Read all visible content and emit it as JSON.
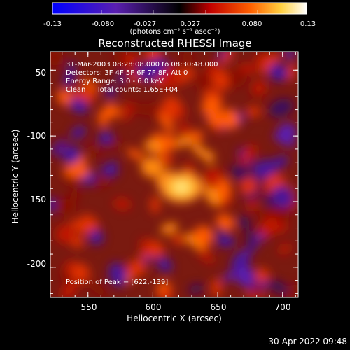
{
  "colorbar": {
    "ticks": [
      "-0.13",
      "-0.080",
      "-0.027",
      "0.027",
      "0.080",
      "0.13"
    ],
    "units_label": "(photons cm⁻² s⁻¹ asec⁻²)",
    "min": -0.13,
    "max": 0.13,
    "colors": [
      "#0000ff",
      "#5a1fb0",
      "#000000",
      "#c00000",
      "#ff6000",
      "#ffd040",
      "#ffffff"
    ]
  },
  "chart_data": {
    "type": "heatmap",
    "title": "Reconstructed RHESSI Image",
    "xlabel": "Heliocentric X (arcsec)",
    "ylabel": "Heliocentric Y (arcsec)",
    "xlim": [
      521,
      712
    ],
    "ylim": [
      -223,
      -36
    ],
    "x_ticks": [
      550,
      600,
      650,
      700
    ],
    "y_ticks": [
      -50,
      -100,
      -150,
      -200
    ],
    "peak": {
      "x": 622,
      "y": -139
    },
    "info": {
      "time_range": "31-Mar-2003 08:28:08.000 to 08:30:48.000",
      "detectors": "Detectors: 3F 4F 5F 6F 7F 8F, Att 0",
      "energy": "Energy Range: 3.0 - 6.0 keV",
      "method_counts": "Clean     Total counts: 1.65E+04"
    },
    "peak_label": "Position of Peak = [622,-139]"
  },
  "footer": {
    "date": "30-Apr-2022 09:48"
  }
}
